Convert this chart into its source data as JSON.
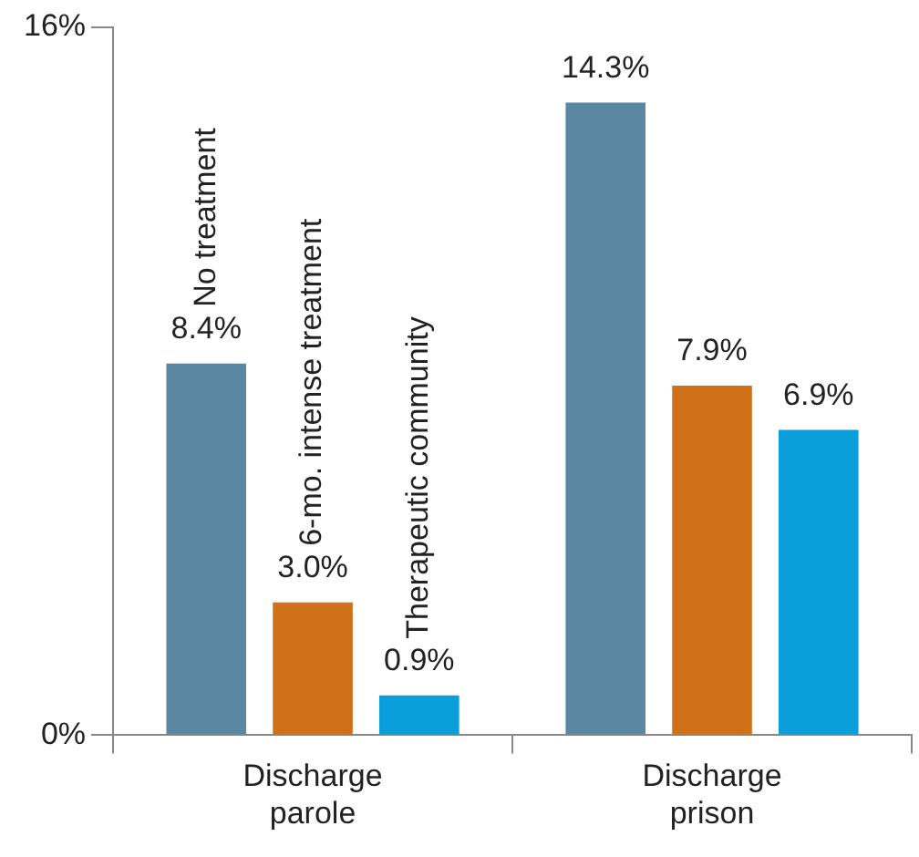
{
  "chart_data": {
    "type": "bar",
    "categories": [
      "Discharge parole",
      "Discharge prison"
    ],
    "series": [
      {
        "name": "No treatment",
        "color": "#5b87a3",
        "values": [
          8.4,
          14.3
        ],
        "value_labels": [
          "8.4%",
          "14.3%"
        ]
      },
      {
        "name": "6-mo. intense treatment",
        "color": "#d07018",
        "values": [
          3.0,
          7.9
        ],
        "value_labels": [
          "3.0%",
          "7.9%"
        ]
      },
      {
        "name": "Therapeutic community",
        "color": "#0a9edb",
        "values": [
          0.9,
          6.9
        ],
        "value_labels": [
          "0.9%",
          "6.9%"
        ]
      }
    ],
    "ylim": [
      0,
      16
    ],
    "yticks": [
      {
        "value": 0,
        "label": "0%"
      },
      {
        "value": 16,
        "label": "16%"
      }
    ],
    "grid": false,
    "legend": false
  }
}
